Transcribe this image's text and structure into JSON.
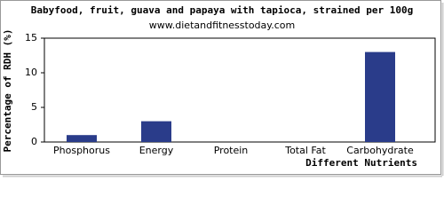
{
  "chart_data": {
    "type": "bar",
    "title": "Babyfood, fruit, guava and papaya with tapioca, strained per 100g",
    "subtitle": "www.dietandfitnesstoday.com",
    "y_label": "Percentage of RDH (%)",
    "x_label": "Different Nutrients",
    "categories": [
      "Phosphorus",
      "Energy",
      "Protein",
      "Total Fat",
      "Carbohydrate"
    ],
    "values": [
      1,
      3,
      0,
      0,
      13
    ],
    "color": "#2a3c8a",
    "ylim": [
      0,
      15
    ],
    "yticks": [
      0,
      5,
      10,
      15
    ],
    "grid": false
  }
}
